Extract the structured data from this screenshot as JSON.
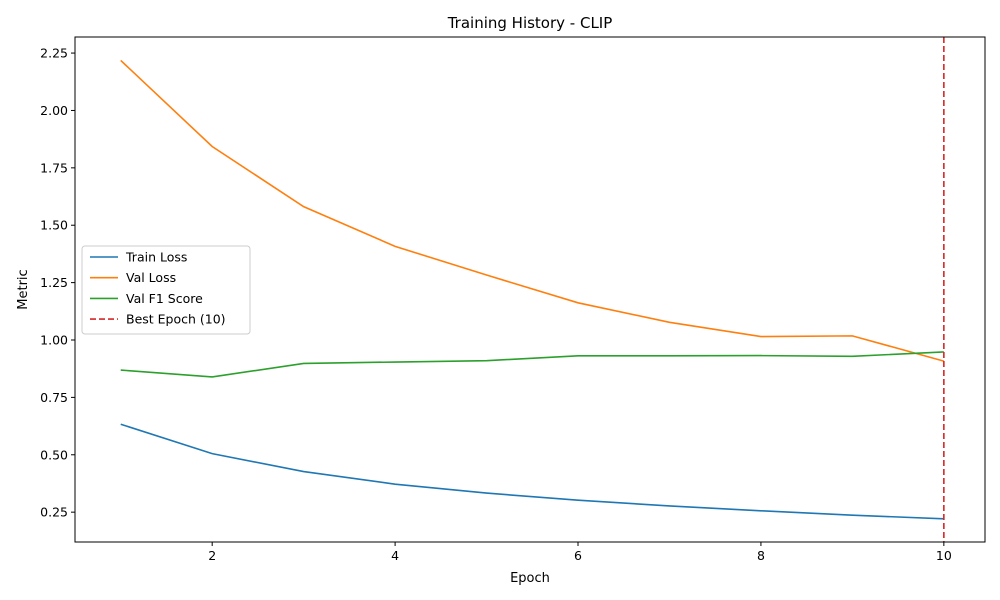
{
  "chart_data": {
    "type": "line",
    "title": "Training History - CLIP",
    "xlabel": "Epoch",
    "ylabel": "Metric",
    "xlim": [
      0.5,
      10.45
    ],
    "ylim": [
      0.12,
      2.32
    ],
    "x_ticks": [
      2,
      4,
      6,
      8,
      10
    ],
    "x_tick_labels": [
      "2",
      "4",
      "6",
      "8",
      "10"
    ],
    "y_ticks": [
      0.25,
      0.5,
      0.75,
      1.0,
      1.25,
      1.5,
      1.75,
      2.0,
      2.25
    ],
    "y_tick_labels": [
      "0.25",
      "0.50",
      "0.75",
      "1.00",
      "1.25",
      "1.50",
      "1.75",
      "2.00",
      "2.25"
    ],
    "grid": false,
    "legend_position": "center-left",
    "x": [
      1,
      2,
      3,
      4,
      5,
      6,
      7,
      8,
      9,
      10
    ],
    "series": [
      {
        "name": "Train Loss",
        "color": "#1f77b4",
        "style": "solid",
        "values": [
          0.633,
          0.505,
          0.427,
          0.372,
          0.333,
          0.302,
          0.277,
          0.256,
          0.237,
          0.221
        ]
      },
      {
        "name": "Val Loss",
        "color": "#ff7f0e",
        "style": "solid",
        "values": [
          2.218,
          1.843,
          1.581,
          1.408,
          1.283,
          1.162,
          1.077,
          1.015,
          1.018,
          0.908
        ]
      },
      {
        "name": "Val F1 Score",
        "color": "#2ca02c",
        "style": "solid",
        "values": [
          0.869,
          0.839,
          0.898,
          0.904,
          0.91,
          0.931,
          0.931,
          0.932,
          0.929,
          0.948
        ]
      }
    ],
    "vline": {
      "name": "Best Epoch (10)",
      "x": 10,
      "color": "#d62728",
      "style": "dashed"
    }
  }
}
